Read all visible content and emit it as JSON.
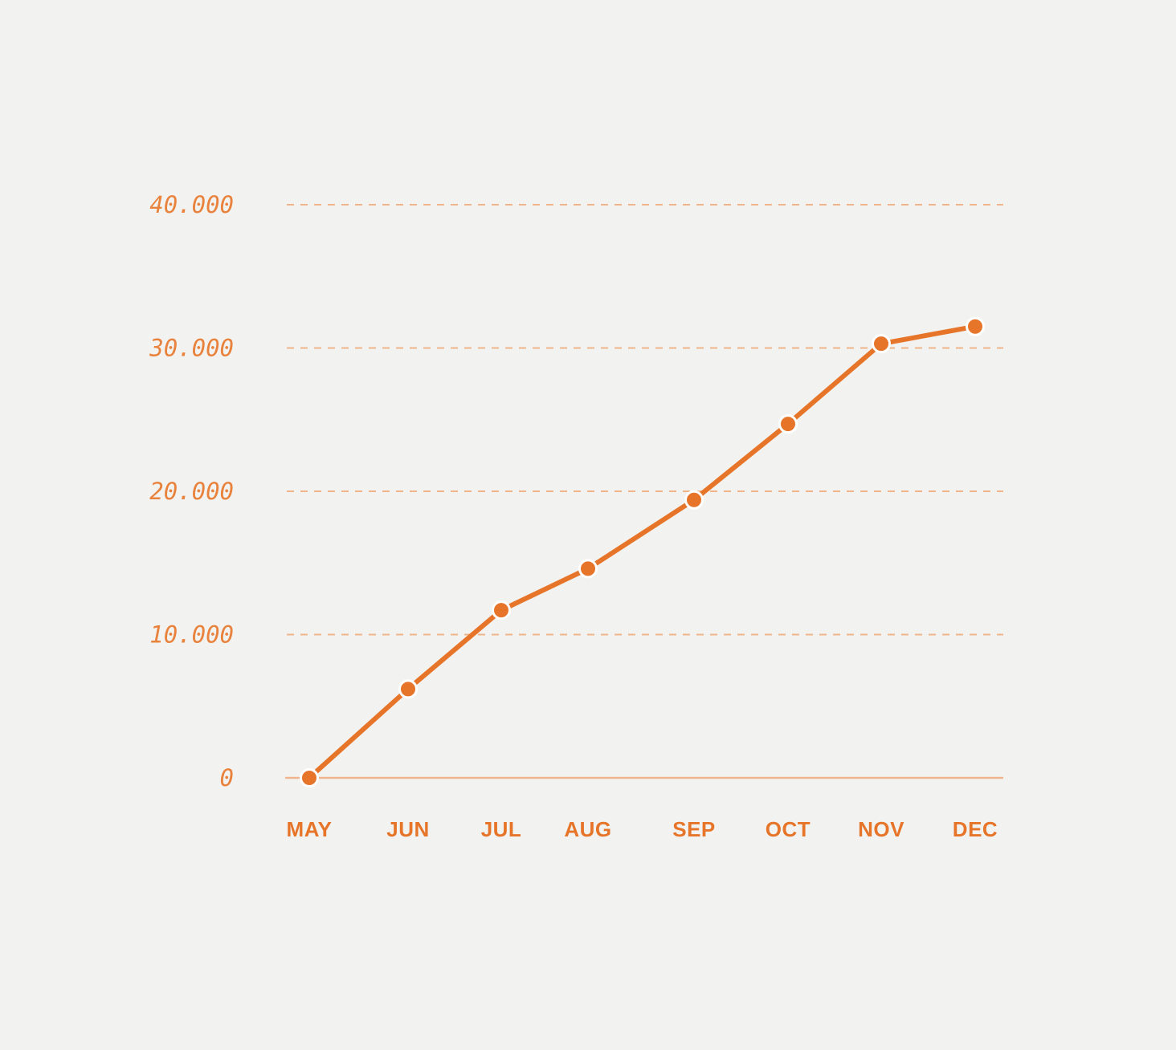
{
  "chart_data": {
    "type": "line",
    "categories": [
      "MAY",
      "JUN",
      "JUL",
      "AUG",
      "SEP",
      "OCT",
      "NOV",
      "DEC"
    ],
    "series": [
      {
        "values": [
          0,
          6200,
          11700,
          14600,
          19400,
          24700,
          30300,
          31500
        ]
      }
    ],
    "y_ticks": [
      0,
      10000,
      20000,
      30000,
      40000
    ],
    "y_tick_labels": [
      "0",
      "10.000",
      "20.000",
      "30.000",
      "40.000"
    ],
    "ylim": [
      0,
      40000
    ],
    "grid": true,
    "grid_style": "dashed",
    "title": "",
    "xlabel": "",
    "ylabel": "",
    "colors": {
      "line": "#e6752a",
      "grid": "#f0b48a",
      "baseline": "#efb58f",
      "ytick_text": "#e8823c",
      "xtick_text": "#e6752a",
      "marker_outline": "#ffffff",
      "background": "#f2f3f1"
    }
  }
}
